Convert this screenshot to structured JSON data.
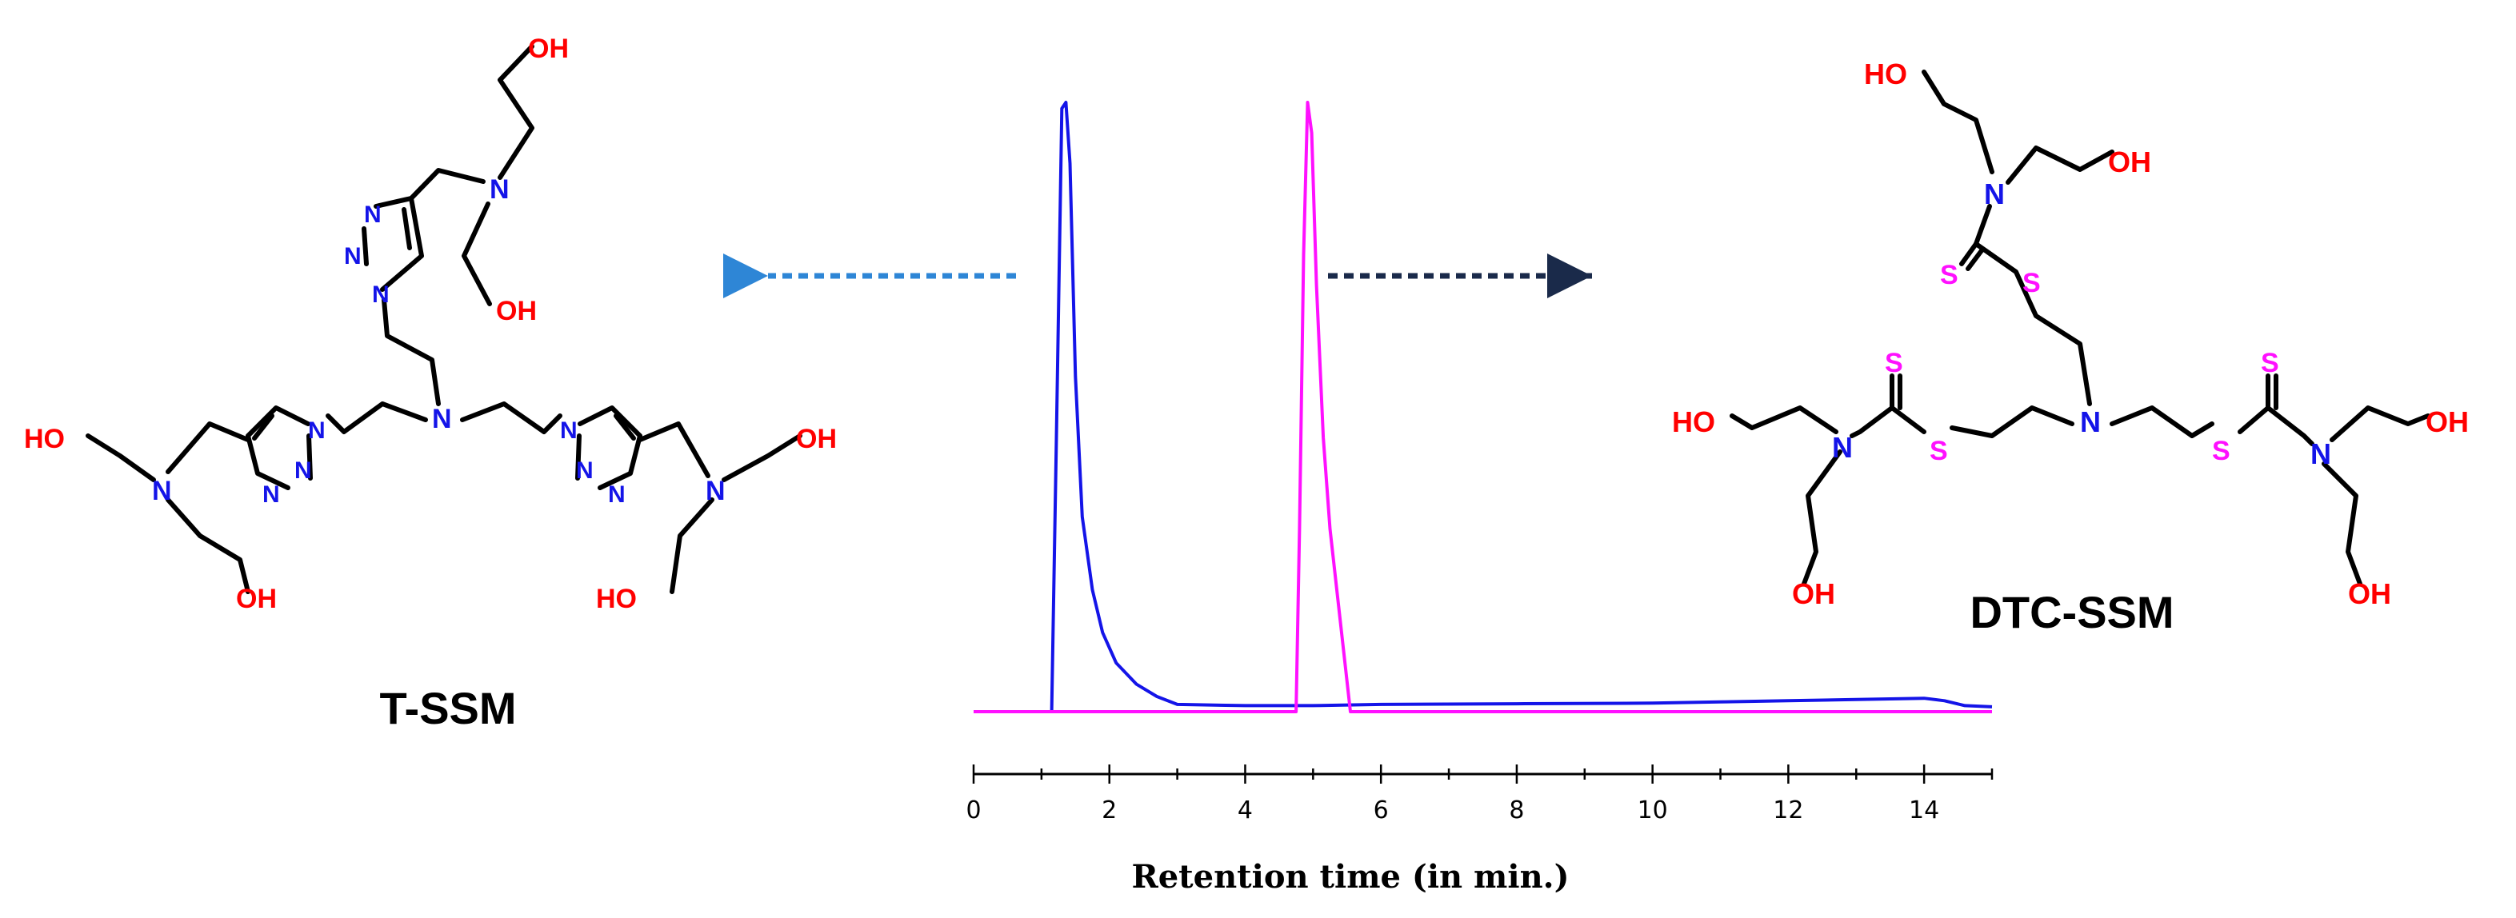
{
  "chart_data": {
    "type": "line",
    "title": "",
    "xlabel": "Retention time (in min.)",
    "ylabel": "",
    "xlim": [
      0,
      15
    ],
    "ylim": [
      0,
      1
    ],
    "grid": false,
    "x_ticks": [
      "0",
      "2",
      "4",
      "6",
      "8",
      "10",
      "12",
      "14"
    ],
    "x_tick_values": [
      0,
      2,
      4,
      6,
      8,
      10,
      12,
      14
    ],
    "series": [
      {
        "name": "T-SSM",
        "color": "#1414e8",
        "x": [
          0,
          1.15,
          1.22,
          1.3,
          1.36,
          1.42,
          1.5,
          1.6,
          1.75,
          1.9,
          2.1,
          2.4,
          2.7,
          3.0,
          4.0,
          5.0,
          6.0,
          8.0,
          10.0,
          11.0,
          12.0,
          13.0,
          14.0,
          14.3,
          14.6,
          15.0
        ],
        "y": [
          0.0,
          0.0,
          0.45,
          0.99,
          1.0,
          0.9,
          0.55,
          0.32,
          0.2,
          0.13,
          0.08,
          0.045,
          0.025,
          0.012,
          0.01,
          0.01,
          0.012,
          0.013,
          0.014,
          0.016,
          0.018,
          0.02,
          0.022,
          0.018,
          0.01,
          0.008
        ]
      },
      {
        "name": "DTC-SSM",
        "color": "#ff10ff",
        "x": [
          0,
          4.75,
          4.8,
          4.86,
          4.92,
          4.98,
          5.05,
          5.15,
          5.25,
          5.35,
          5.45,
          5.55,
          6.0,
          10.0,
          15.0
        ],
        "y": [
          0.0,
          0.0,
          0.3,
          0.75,
          1.0,
          0.95,
          0.7,
          0.45,
          0.3,
          0.2,
          0.1,
          0.0,
          0.0,
          0.0,
          0.0
        ]
      }
    ]
  },
  "molecules": {
    "left": {
      "name": "T-SSM",
      "label_oh": "OH",
      "label_ho": "HO",
      "label_n": "N"
    },
    "right": {
      "name": "DTC-SSM",
      "label_oh": "OH",
      "label_ho": "HO",
      "label_n": "N",
      "label_s": "S"
    }
  },
  "arrows": {
    "left_color": "#2e86d6",
    "right_color": "#1a2a4a"
  },
  "colors": {
    "nitrogen": "#1414e8",
    "oxygen": "#ff0000",
    "sulfur": "#ff10ff"
  }
}
